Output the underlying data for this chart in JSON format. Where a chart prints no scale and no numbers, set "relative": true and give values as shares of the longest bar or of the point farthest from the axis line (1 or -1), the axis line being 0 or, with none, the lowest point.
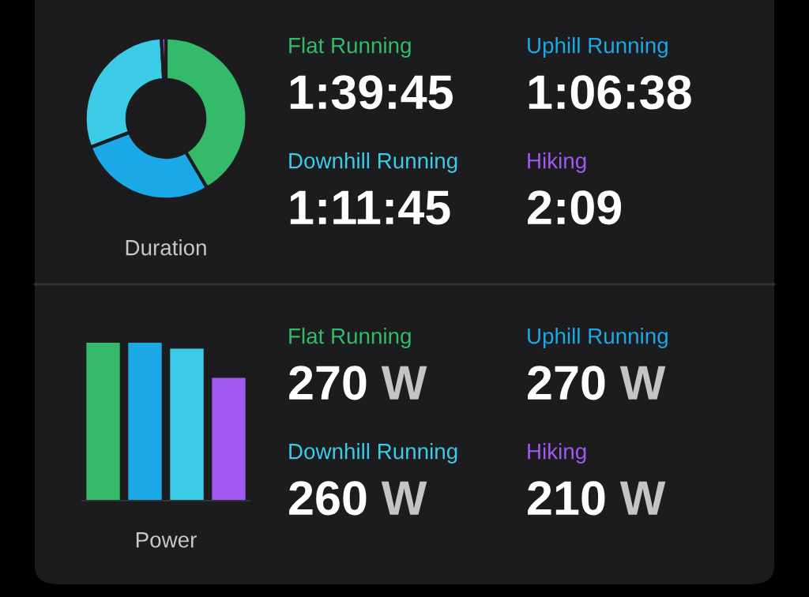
{
  "chart_data": [
    {
      "type": "donut",
      "xlabel": "Duration",
      "categories": [
        null,
        null,
        null,
        null
      ],
      "values": [
        41.5,
        27.7,
        29.9,
        0.9
      ],
      "colors": [
        "#35b96b",
        "#1ba8e6",
        "#3ccbe6",
        "#a259f0"
      ]
    },
    {
      "type": "other",
      "annotations": [
        "Flat Running",
        "1:39:45",
        "Uphill Running",
        "1:06:38",
        "Downhill Running",
        "1:11:45",
        "Hiking",
        "2:09"
      ],
      "colors": [
        "#35b96b",
        "#ffffff",
        "#1ba8e6",
        "#ffffff",
        "#3ccbe6",
        "#ffffff",
        "#a259f0",
        "#ffffff"
      ]
    },
    {
      "type": "bar",
      "xlabel": "Power",
      "categories": [
        null,
        null,
        null,
        null
      ],
      "relative": true,
      "values": [
        1,
        1,
        0.963,
        0.778
      ],
      "colors": [
        "#35b96b",
        "#1ba8e6",
        "#3ccbe6",
        "#a259f0"
      ]
    },
    {
      "type": "other",
      "annotations": [
        "Flat Running",
        "270 W",
        "Uphill Running",
        "270 W",
        "Downhill Running",
        "260 W",
        "Hiking",
        "210 W"
      ],
      "colors": [
        "#35b96b",
        "#ffffff",
        "#1ba8e6",
        "#ffffff",
        "#3ccbe6",
        "#ffffff",
        "#a259f0",
        "#ffffff"
      ]
    }
  ]
}
